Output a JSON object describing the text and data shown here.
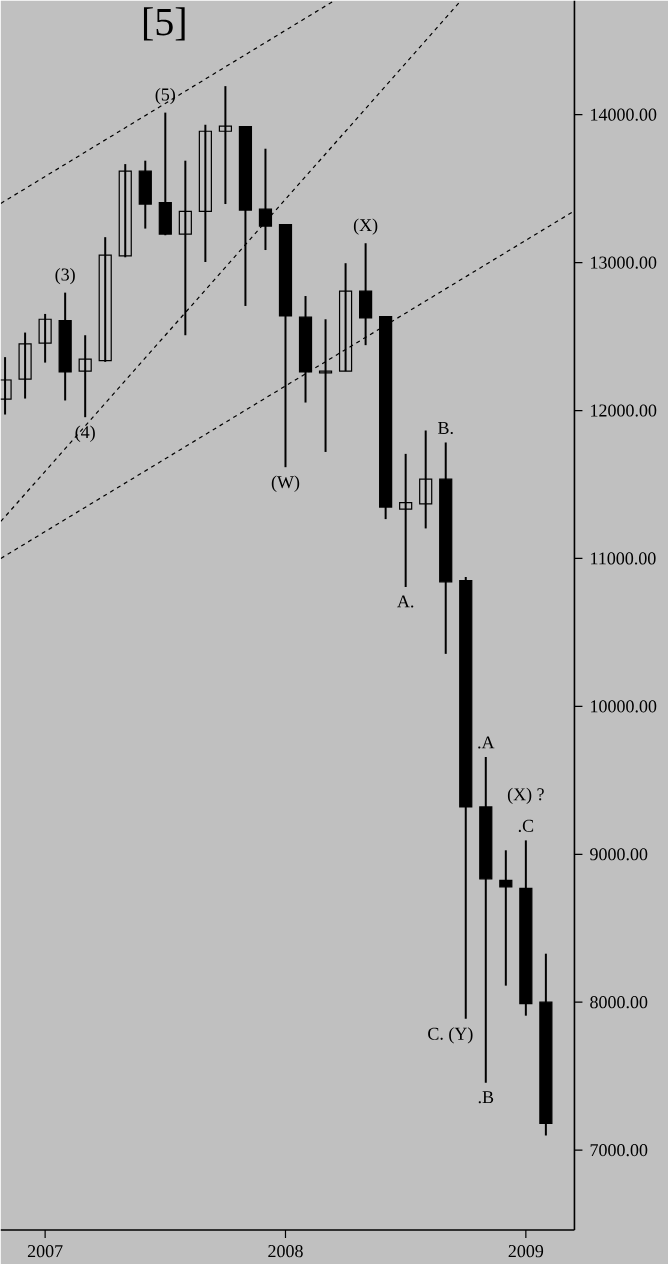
{
  "chart_data": {
    "type": "candlestick",
    "color": "#000000",
    "x": [
      "2006-11",
      "2006-12",
      "2007-01",
      "2007-02",
      "2007-03",
      "2007-04",
      "2007-05",
      "2007-06",
      "2007-07",
      "2007-08",
      "2007-09",
      "2007-10",
      "2007-11",
      "2007-12",
      "2008-01",
      "2008-02",
      "2008-03",
      "2008-04",
      "2008-05",
      "2008-06",
      "2008-07",
      "2008-08",
      "2008-09",
      "2008-10",
      "2008-11",
      "2008-12",
      "2009-01",
      "2009-02"
    ],
    "ohlc": [
      [
        12077,
        12361,
        11973,
        12207
      ],
      [
        12212,
        12527,
        12081,
        12450
      ],
      [
        12455,
        12653,
        12324,
        12617
      ],
      [
        12608,
        12797,
        12068,
        12261
      ],
      [
        12266,
        12509,
        11955,
        12347
      ],
      [
        12338,
        13172,
        12329,
        13050
      ],
      [
        13045,
        13666,
        13036,
        13618
      ],
      [
        13618,
        13689,
        13230,
        13396
      ],
      [
        13405,
        14014,
        13185,
        13193
      ],
      [
        13193,
        13689,
        12509,
        13347
      ],
      [
        13347,
        13932,
        13004,
        13888
      ],
      [
        13888,
        14193,
        13396,
        13923
      ],
      [
        13919,
        13919,
        12707,
        13355
      ],
      [
        13361,
        13770,
        13085,
        13247
      ],
      [
        13257,
        13257,
        11617,
        12639
      ],
      [
        12631,
        12774,
        12054,
        12261
      ],
      [
        12255,
        12617,
        11720,
        12266
      ],
      [
        12266,
        12996,
        12266,
        12807
      ],
      [
        12807,
        13131,
        12442,
        12626
      ],
      [
        12635,
        12635,
        11266,
        11347
      ],
      [
        11334,
        11707,
        10807,
        11378
      ],
      [
        11369,
        11865,
        11203,
        11536
      ],
      [
        11536,
        11784,
        10355,
        10842
      ],
      [
        10851,
        10874,
        7888,
        9320
      ],
      [
        9320,
        9658,
        7455,
        8834
      ],
      [
        8824,
        9027,
        8112,
        8780
      ],
      [
        8770,
        9094,
        7909,
        7990
      ],
      [
        8000,
        8328,
        7099,
        7180
      ]
    ],
    "series": [
      {
        "type": "line",
        "color": "#000000",
        "line_style": "dashed",
        "x": [
          "2006-10-25",
          "2008-03-14"
        ],
        "values": [
          13400,
          14770
        ]
      },
      {
        "type": "line",
        "color": "#000000",
        "line_style": "dashed",
        "x": [
          "2006-10-25",
          "2008-09-24"
        ],
        "values": [
          11250,
          14770
        ]
      },
      {
        "type": "line",
        "color": "#000000",
        "line_style": "dashed",
        "x": [
          "2006-10-25",
          "2009-03-14"
        ],
        "values": [
          11000,
          13350
        ]
      }
    ],
    "xlim": [
      "2006-10-25",
      "2009-03-14"
    ],
    "xticks": [
      {
        "value": "2007",
        "label": "2007"
      },
      {
        "value": "2008",
        "label": "2008"
      },
      {
        "value": "2009",
        "label": "2009"
      }
    ],
    "ylim": [
      6460,
      14770
    ],
    "yticks": [
      {
        "value": 7000,
        "label": "7000.00"
      },
      {
        "value": 8000,
        "label": "8000.00"
      },
      {
        "value": 9000,
        "label": "9000.00"
      },
      {
        "value": 10000,
        "label": "10000.00"
      },
      {
        "value": 11000,
        "label": "11000.00"
      },
      {
        "value": 12000,
        "label": "12000.00"
      },
      {
        "value": 13000,
        "label": "13000.00"
      },
      {
        "value": 14000,
        "label": "14000.00"
      }
    ],
    "title": "[5]",
    "annotations": [
      {
        "text": "(5)",
        "x": "2007-07",
        "y": 14014
      },
      {
        "text": "(3)",
        "x": "2007-02",
        "y": 12797
      },
      {
        "text": "(4)",
        "x": "2007-03",
        "y": 11955
      },
      {
        "text": "(W)",
        "x": "2008-01",
        "y": 11617
      },
      {
        "text": "(X)",
        "x": "2008-05",
        "y": 13131
      },
      {
        "text": "B.",
        "x": "2008-09",
        "y": 11784
      },
      {
        "text": "A.",
        "x": "2008-07",
        "y": 10807
      },
      {
        "text": ".A",
        "x": "2008-11",
        "y": 9658
      },
      {
        "text": ".C",
        "x": "2009-01",
        "y": 9094
      },
      {
        "text": "(X) ?",
        "x": "2009-01",
        "y": 9094
      },
      {
        "text": "C. (Y)",
        "x": "2008-10",
        "y": 7888
      },
      {
        "text": ".B",
        "x": "2008-11",
        "y": 7455
      }
    ]
  }
}
